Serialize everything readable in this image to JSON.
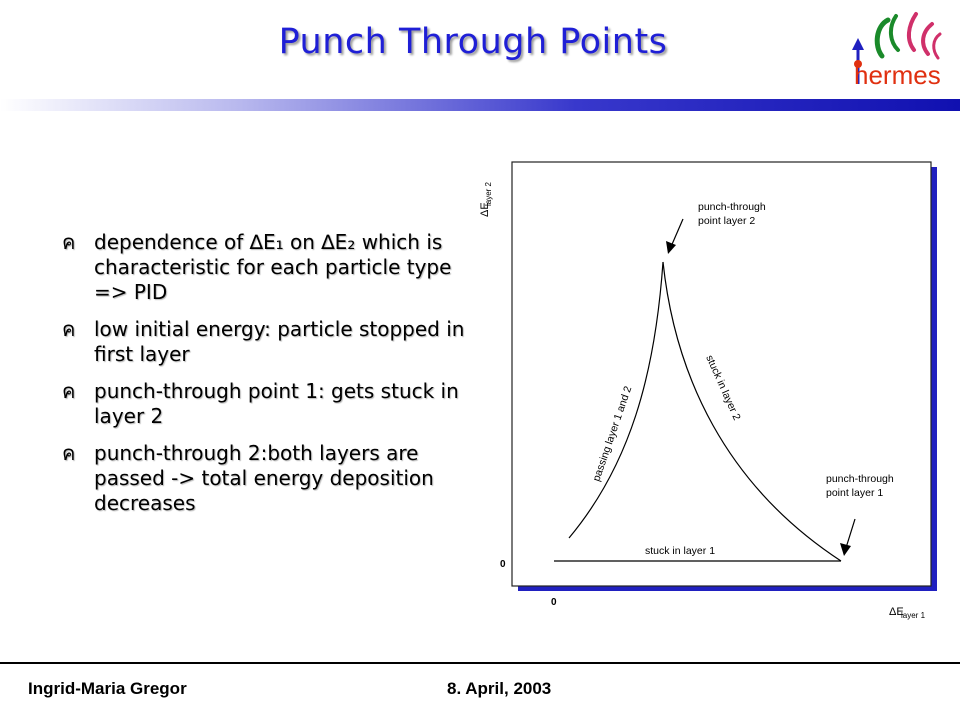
{
  "slide": {
    "title": "Punch Through Points",
    "logo_text": "hermes",
    "bullets": [
      {
        "text": "dependence of ∆E₁ on ∆E₂ which is characteristic for each particle type => PID"
      },
      {
        "text": "low initial energy: particle stopped in first layer"
      },
      {
        "text": "punch-through point 1: gets stuck in layer 2"
      },
      {
        "text": "punch-through 2:both layers are passed -> total energy deposition decreases"
      }
    ],
    "bullet_glyph": "ค"
  },
  "figure": {
    "y_axis_label": "ΔE",
    "y_axis_sub": "layer 2",
    "x_axis_label": "ΔE",
    "x_axis_sub": "layer 1",
    "y_zero": "0",
    "x_zero": "0",
    "annotations": {
      "pt2_line1": "punch-through",
      "pt2_line2": "point layer 2",
      "pt1_line1": "punch-through",
      "pt1_line2": "point layer 1",
      "passing": "passing layer 1 and 2",
      "stuck2": "stuck in layer 2",
      "stuck1": "stuck in layer 1"
    }
  },
  "footer": {
    "author": "Ingrid-Maria Gregor",
    "date": "8. April, 2003"
  },
  "colors": {
    "title": "#1f1fd6",
    "frame_blue": "#2020c0",
    "logo_red": "#e03010"
  }
}
